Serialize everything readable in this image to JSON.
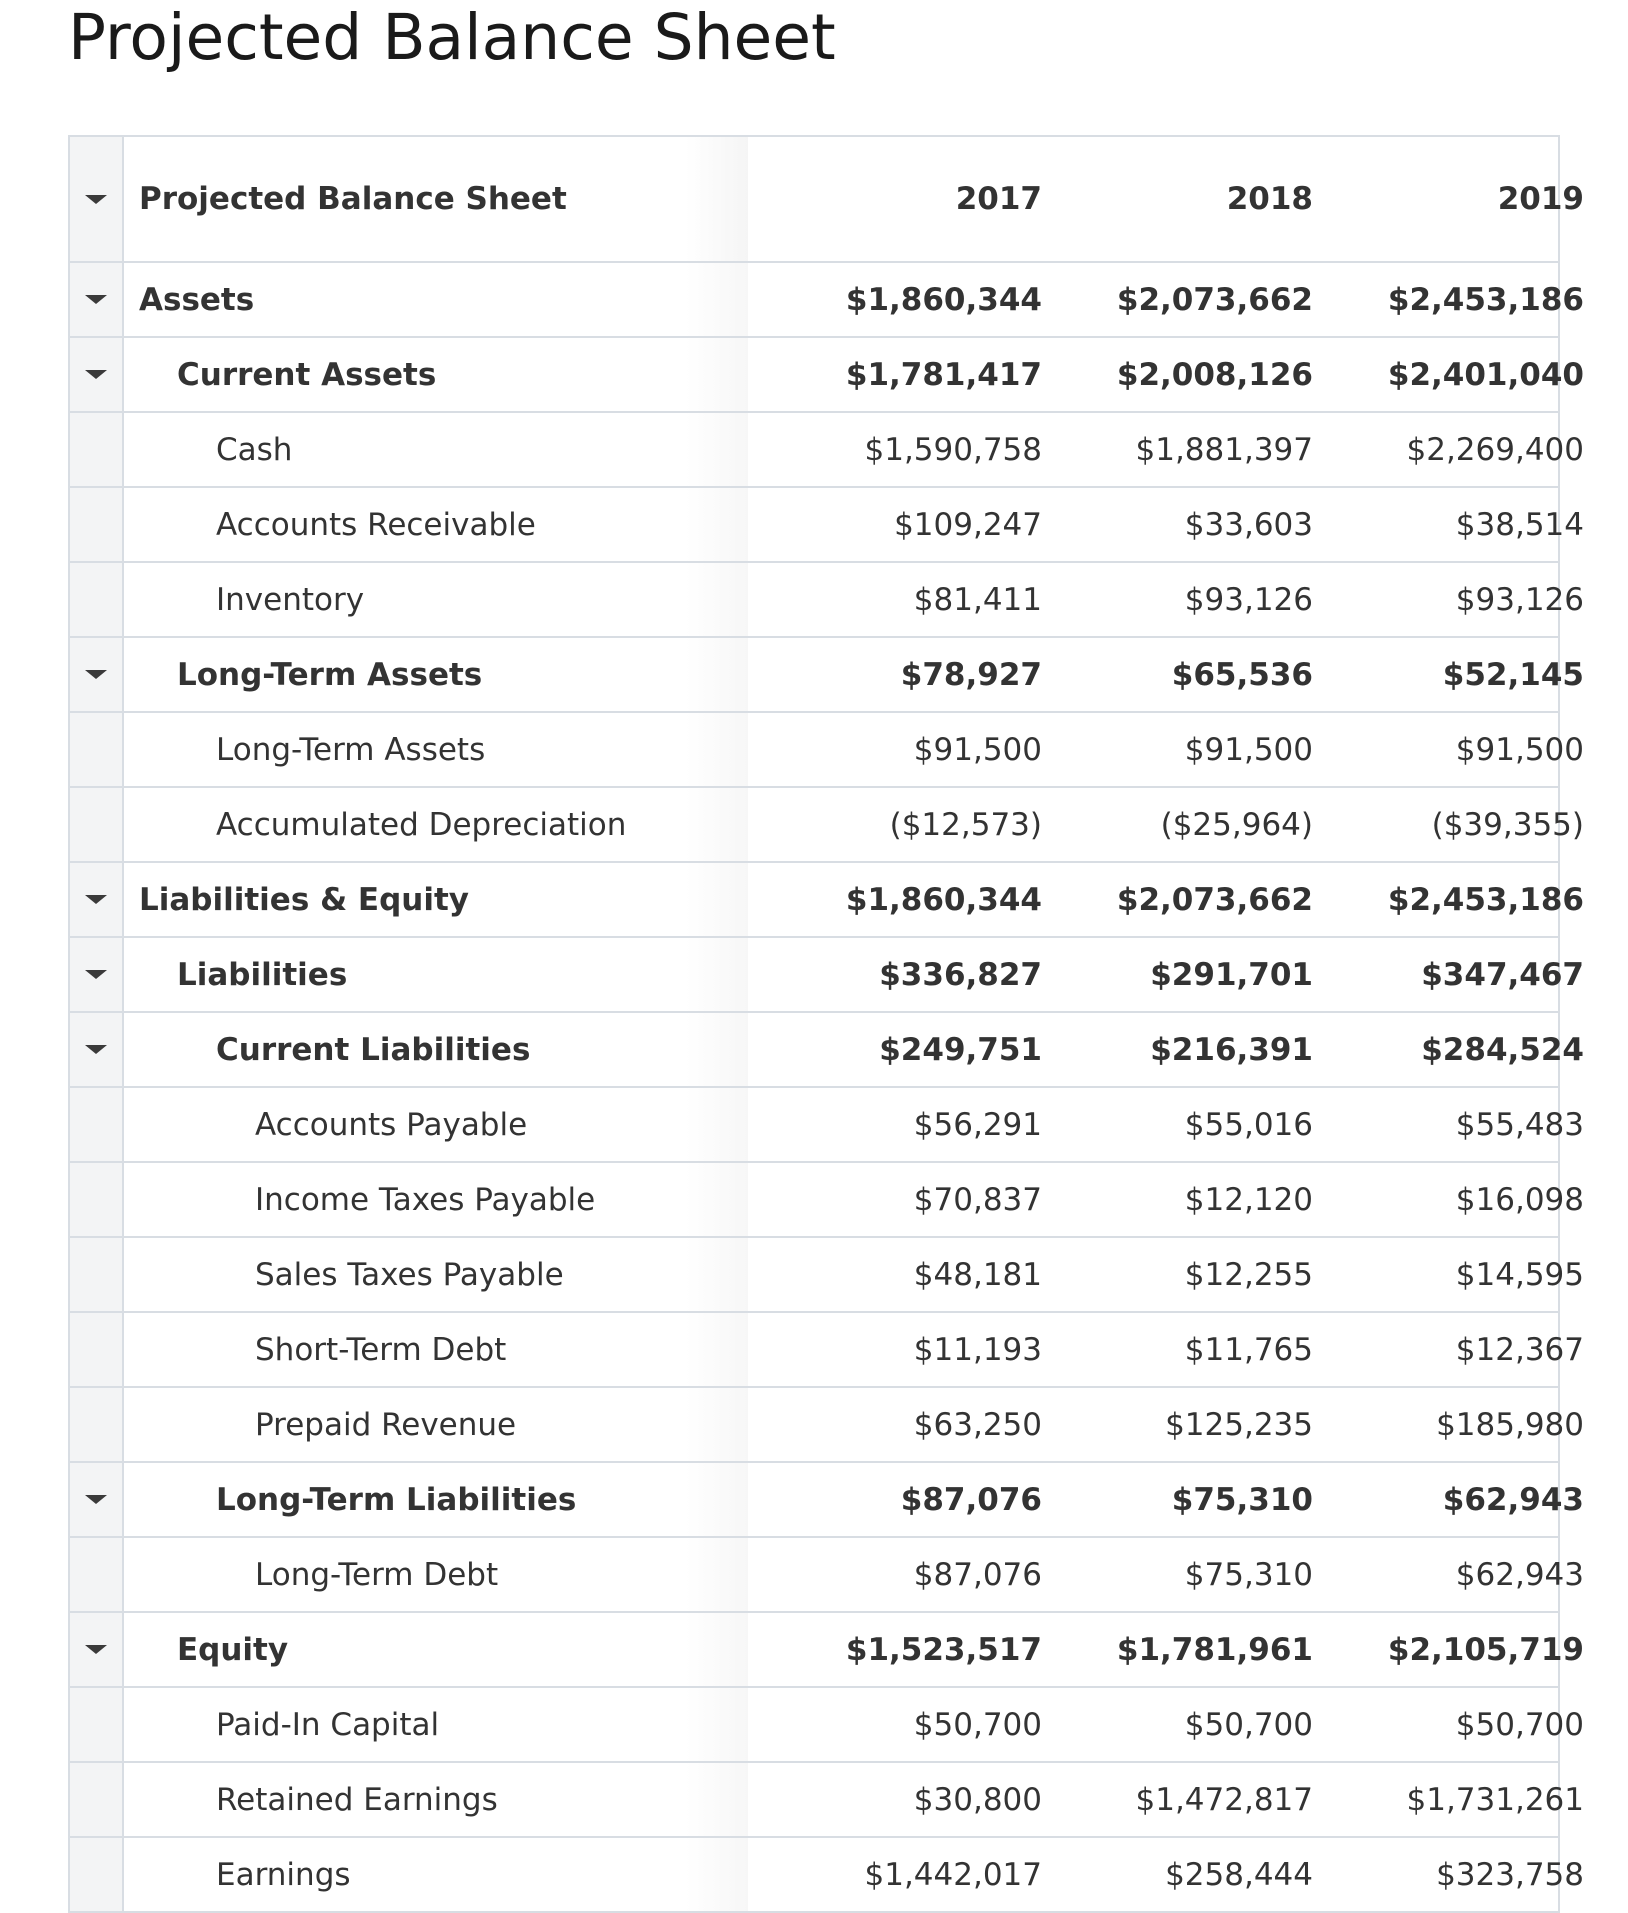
{
  "page": {
    "title": "Projected Balance Sheet"
  },
  "table": {
    "header": {
      "label": "Projected Balance Sheet",
      "years": [
        "2017",
        "2018",
        "2019"
      ]
    },
    "rows": [
      {
        "label": "Assets",
        "level": 0,
        "bold": true,
        "expandable": true,
        "values": [
          "$1,860,344",
          "$2,073,662",
          "$2,453,186"
        ]
      },
      {
        "label": "Current Assets",
        "level": 1,
        "bold": true,
        "expandable": true,
        "values": [
          "$1,781,417",
          "$2,008,126",
          "$2,401,040"
        ]
      },
      {
        "label": "Cash",
        "level": 2,
        "bold": false,
        "expandable": false,
        "values": [
          "$1,590,758",
          "$1,881,397",
          "$2,269,400"
        ]
      },
      {
        "label": "Accounts Receivable",
        "level": 2,
        "bold": false,
        "expandable": false,
        "values": [
          "$109,247",
          "$33,603",
          "$38,514"
        ]
      },
      {
        "label": "Inventory",
        "level": 2,
        "bold": false,
        "expandable": false,
        "values": [
          "$81,411",
          "$93,126",
          "$93,126"
        ]
      },
      {
        "label": "Long-Term Assets",
        "level": 1,
        "bold": true,
        "expandable": true,
        "values": [
          "$78,927",
          "$65,536",
          "$52,145"
        ]
      },
      {
        "label": "Long-Term Assets",
        "level": 2,
        "bold": false,
        "expandable": false,
        "values": [
          "$91,500",
          "$91,500",
          "$91,500"
        ]
      },
      {
        "label": "Accumulated Depreciation",
        "level": 2,
        "bold": false,
        "expandable": false,
        "values": [
          "($12,573)",
          "($25,964)",
          "($39,355)"
        ]
      },
      {
        "label": "Liabilities & Equity",
        "level": 0,
        "bold": true,
        "expandable": true,
        "values": [
          "$1,860,344",
          "$2,073,662",
          "$2,453,186"
        ]
      },
      {
        "label": "Liabilities",
        "level": 1,
        "bold": true,
        "expandable": true,
        "values": [
          "$336,827",
          "$291,701",
          "$347,467"
        ]
      },
      {
        "label": "Current Liabilities",
        "level": 2,
        "bold": true,
        "expandable": true,
        "values": [
          "$249,751",
          "$216,391",
          "$284,524"
        ]
      },
      {
        "label": "Accounts Payable",
        "level": 3,
        "bold": false,
        "expandable": false,
        "values": [
          "$56,291",
          "$55,016",
          "$55,483"
        ]
      },
      {
        "label": "Income Taxes Payable",
        "level": 3,
        "bold": false,
        "expandable": false,
        "values": [
          "$70,837",
          "$12,120",
          "$16,098"
        ]
      },
      {
        "label": "Sales Taxes Payable",
        "level": 3,
        "bold": false,
        "expandable": false,
        "values": [
          "$48,181",
          "$12,255",
          "$14,595"
        ]
      },
      {
        "label": "Short-Term Debt",
        "level": 3,
        "bold": false,
        "expandable": false,
        "values": [
          "$11,193",
          "$11,765",
          "$12,367"
        ]
      },
      {
        "label": "Prepaid Revenue",
        "level": 3,
        "bold": false,
        "expandable": false,
        "values": [
          "$63,250",
          "$125,235",
          "$185,980"
        ]
      },
      {
        "label": "Long-Term Liabilities",
        "level": 2,
        "bold": true,
        "expandable": true,
        "values": [
          "$87,076",
          "$75,310",
          "$62,943"
        ]
      },
      {
        "label": "Long-Term Debt",
        "level": 3,
        "bold": false,
        "expandable": false,
        "values": [
          "$87,076",
          "$75,310",
          "$62,943"
        ]
      },
      {
        "label": "Equity",
        "level": 1,
        "bold": true,
        "expandable": true,
        "values": [
          "$1,523,517",
          "$1,781,961",
          "$2,105,719"
        ]
      },
      {
        "label": "Paid-In Capital",
        "level": 2,
        "bold": false,
        "expandable": false,
        "values": [
          "$50,700",
          "$50,700",
          "$50,700"
        ]
      },
      {
        "label": "Retained Earnings",
        "level": 2,
        "bold": false,
        "expandable": false,
        "values": [
          "$30,800",
          "$1,472,817",
          "$1,731,261"
        ]
      },
      {
        "label": "Earnings",
        "level": 2,
        "bold": false,
        "expandable": false,
        "values": [
          "$1,442,017",
          "$258,444",
          "$323,758"
        ]
      }
    ]
  },
  "icons": {
    "collapse": "caret-down-icon"
  }
}
